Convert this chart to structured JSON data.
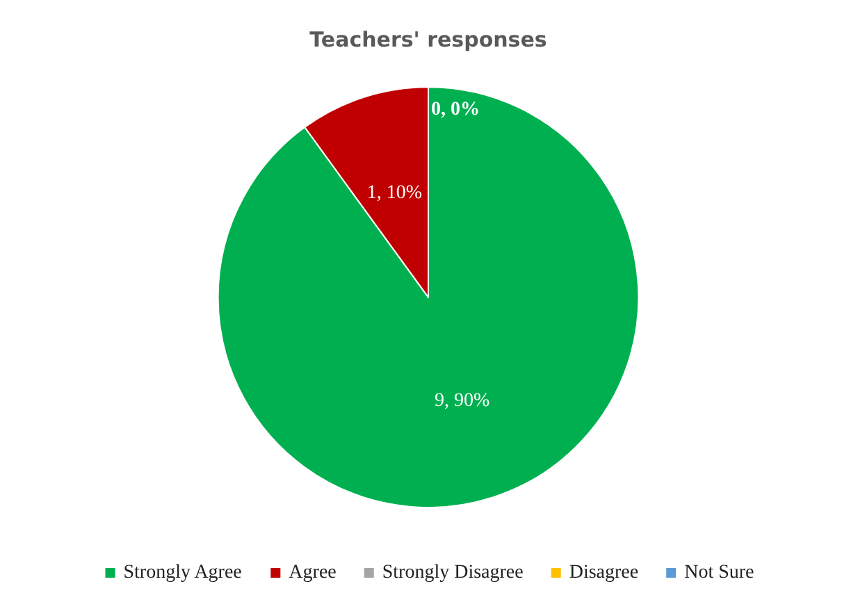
{
  "chart_data": {
    "type": "pie",
    "title": "Teachers' responses",
    "categories": [
      "Strongly Agree",
      "Agree",
      "Strongly Disagree",
      "Disagree",
      "Not Sure"
    ],
    "values": [
      9,
      1,
      0,
      0,
      0
    ],
    "colors": [
      "#00b050",
      "#c00000",
      "#a5a5a5",
      "#ffc000",
      "#5b9bd5"
    ],
    "value_labels": [
      "9, 90%",
      "1, 10%",
      "0, 0%",
      null,
      null
    ],
    "legend": "bottom"
  }
}
